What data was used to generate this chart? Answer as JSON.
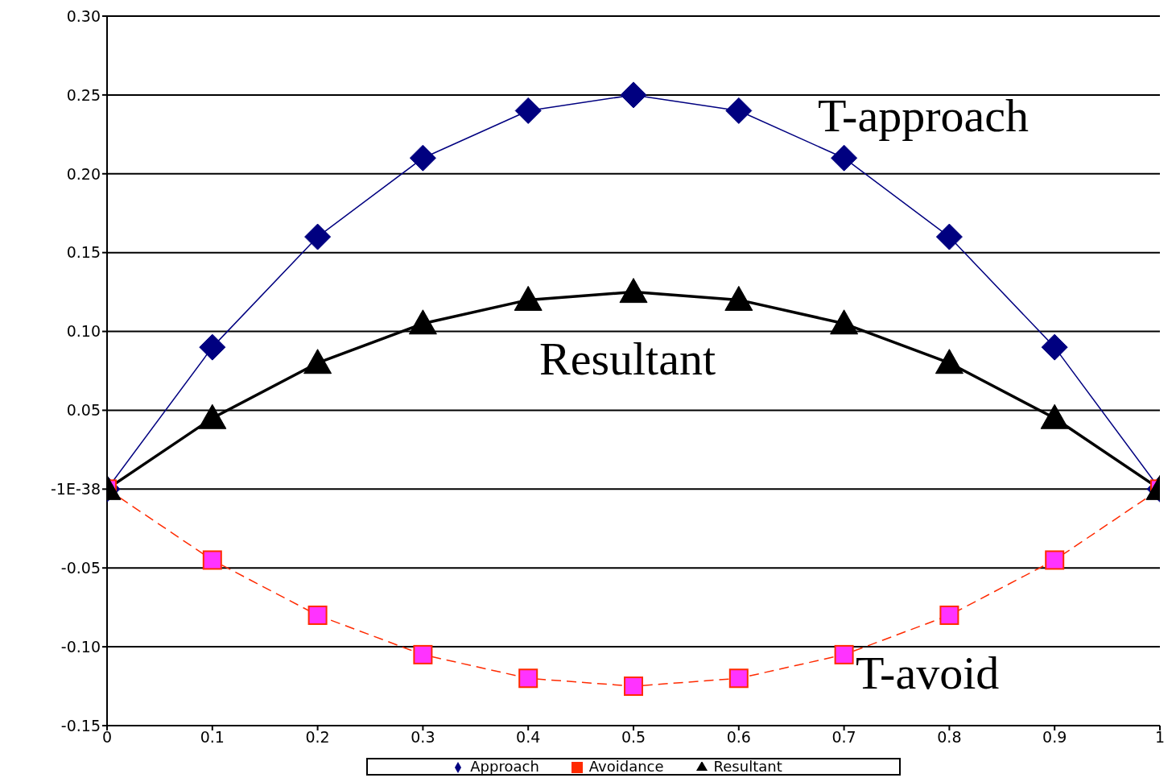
{
  "chart_data": {
    "type": "line",
    "x": [
      0,
      0.1,
      0.2,
      0.3,
      0.4,
      0.5,
      0.6,
      0.7,
      0.8,
      0.9,
      1
    ],
    "series": [
      {
        "name": "Approach",
        "color": "#000080",
        "marker": "diamond",
        "line_style": "solid",
        "values": [
          0,
          0.09,
          0.16,
          0.21,
          0.24,
          0.25,
          0.24,
          0.21,
          0.16,
          0.09,
          0
        ]
      },
      {
        "name": "Avoidance",
        "color": "#ff2a00",
        "marker": "square",
        "line_style": "dashed",
        "values": [
          0,
          -0.045,
          -0.08,
          -0.105,
          -0.12,
          -0.125,
          -0.12,
          -0.105,
          -0.08,
          -0.045,
          0
        ]
      },
      {
        "name": "Resultant",
        "color": "#000000",
        "marker": "triangle",
        "line_style": "solid",
        "values": [
          0,
          0.045,
          0.08,
          0.105,
          0.12,
          0.125,
          0.12,
          0.105,
          0.08,
          0.045,
          0
        ]
      }
    ],
    "xlim": [
      0,
      1
    ],
    "xticks": [
      0,
      0.1,
      0.2,
      0.3,
      0.4,
      0.5,
      0.6,
      0.7,
      0.8,
      0.9,
      1
    ],
    "ylim": [
      -0.15,
      0.3
    ],
    "yticks": [
      {
        "value": -0.15,
        "label": "-0.15"
      },
      {
        "value": -0.1,
        "label": "-0.10"
      },
      {
        "value": -0.05,
        "label": "-0.05"
      },
      {
        "value": 0,
        "label": "-1E-38"
      },
      {
        "value": 0.05,
        "label": "0.05"
      },
      {
        "value": 0.1,
        "label": "0.10"
      },
      {
        "value": 0.15,
        "label": "0.15"
      },
      {
        "value": 0.2,
        "label": "0.20"
      },
      {
        "value": 0.25,
        "label": "0.25"
      },
      {
        "value": 0.3,
        "label": "0.30"
      }
    ],
    "grid": "y",
    "legend": "bottom",
    "annotations": [
      "T-approach",
      "Resultant",
      "T-avoid"
    ]
  }
}
